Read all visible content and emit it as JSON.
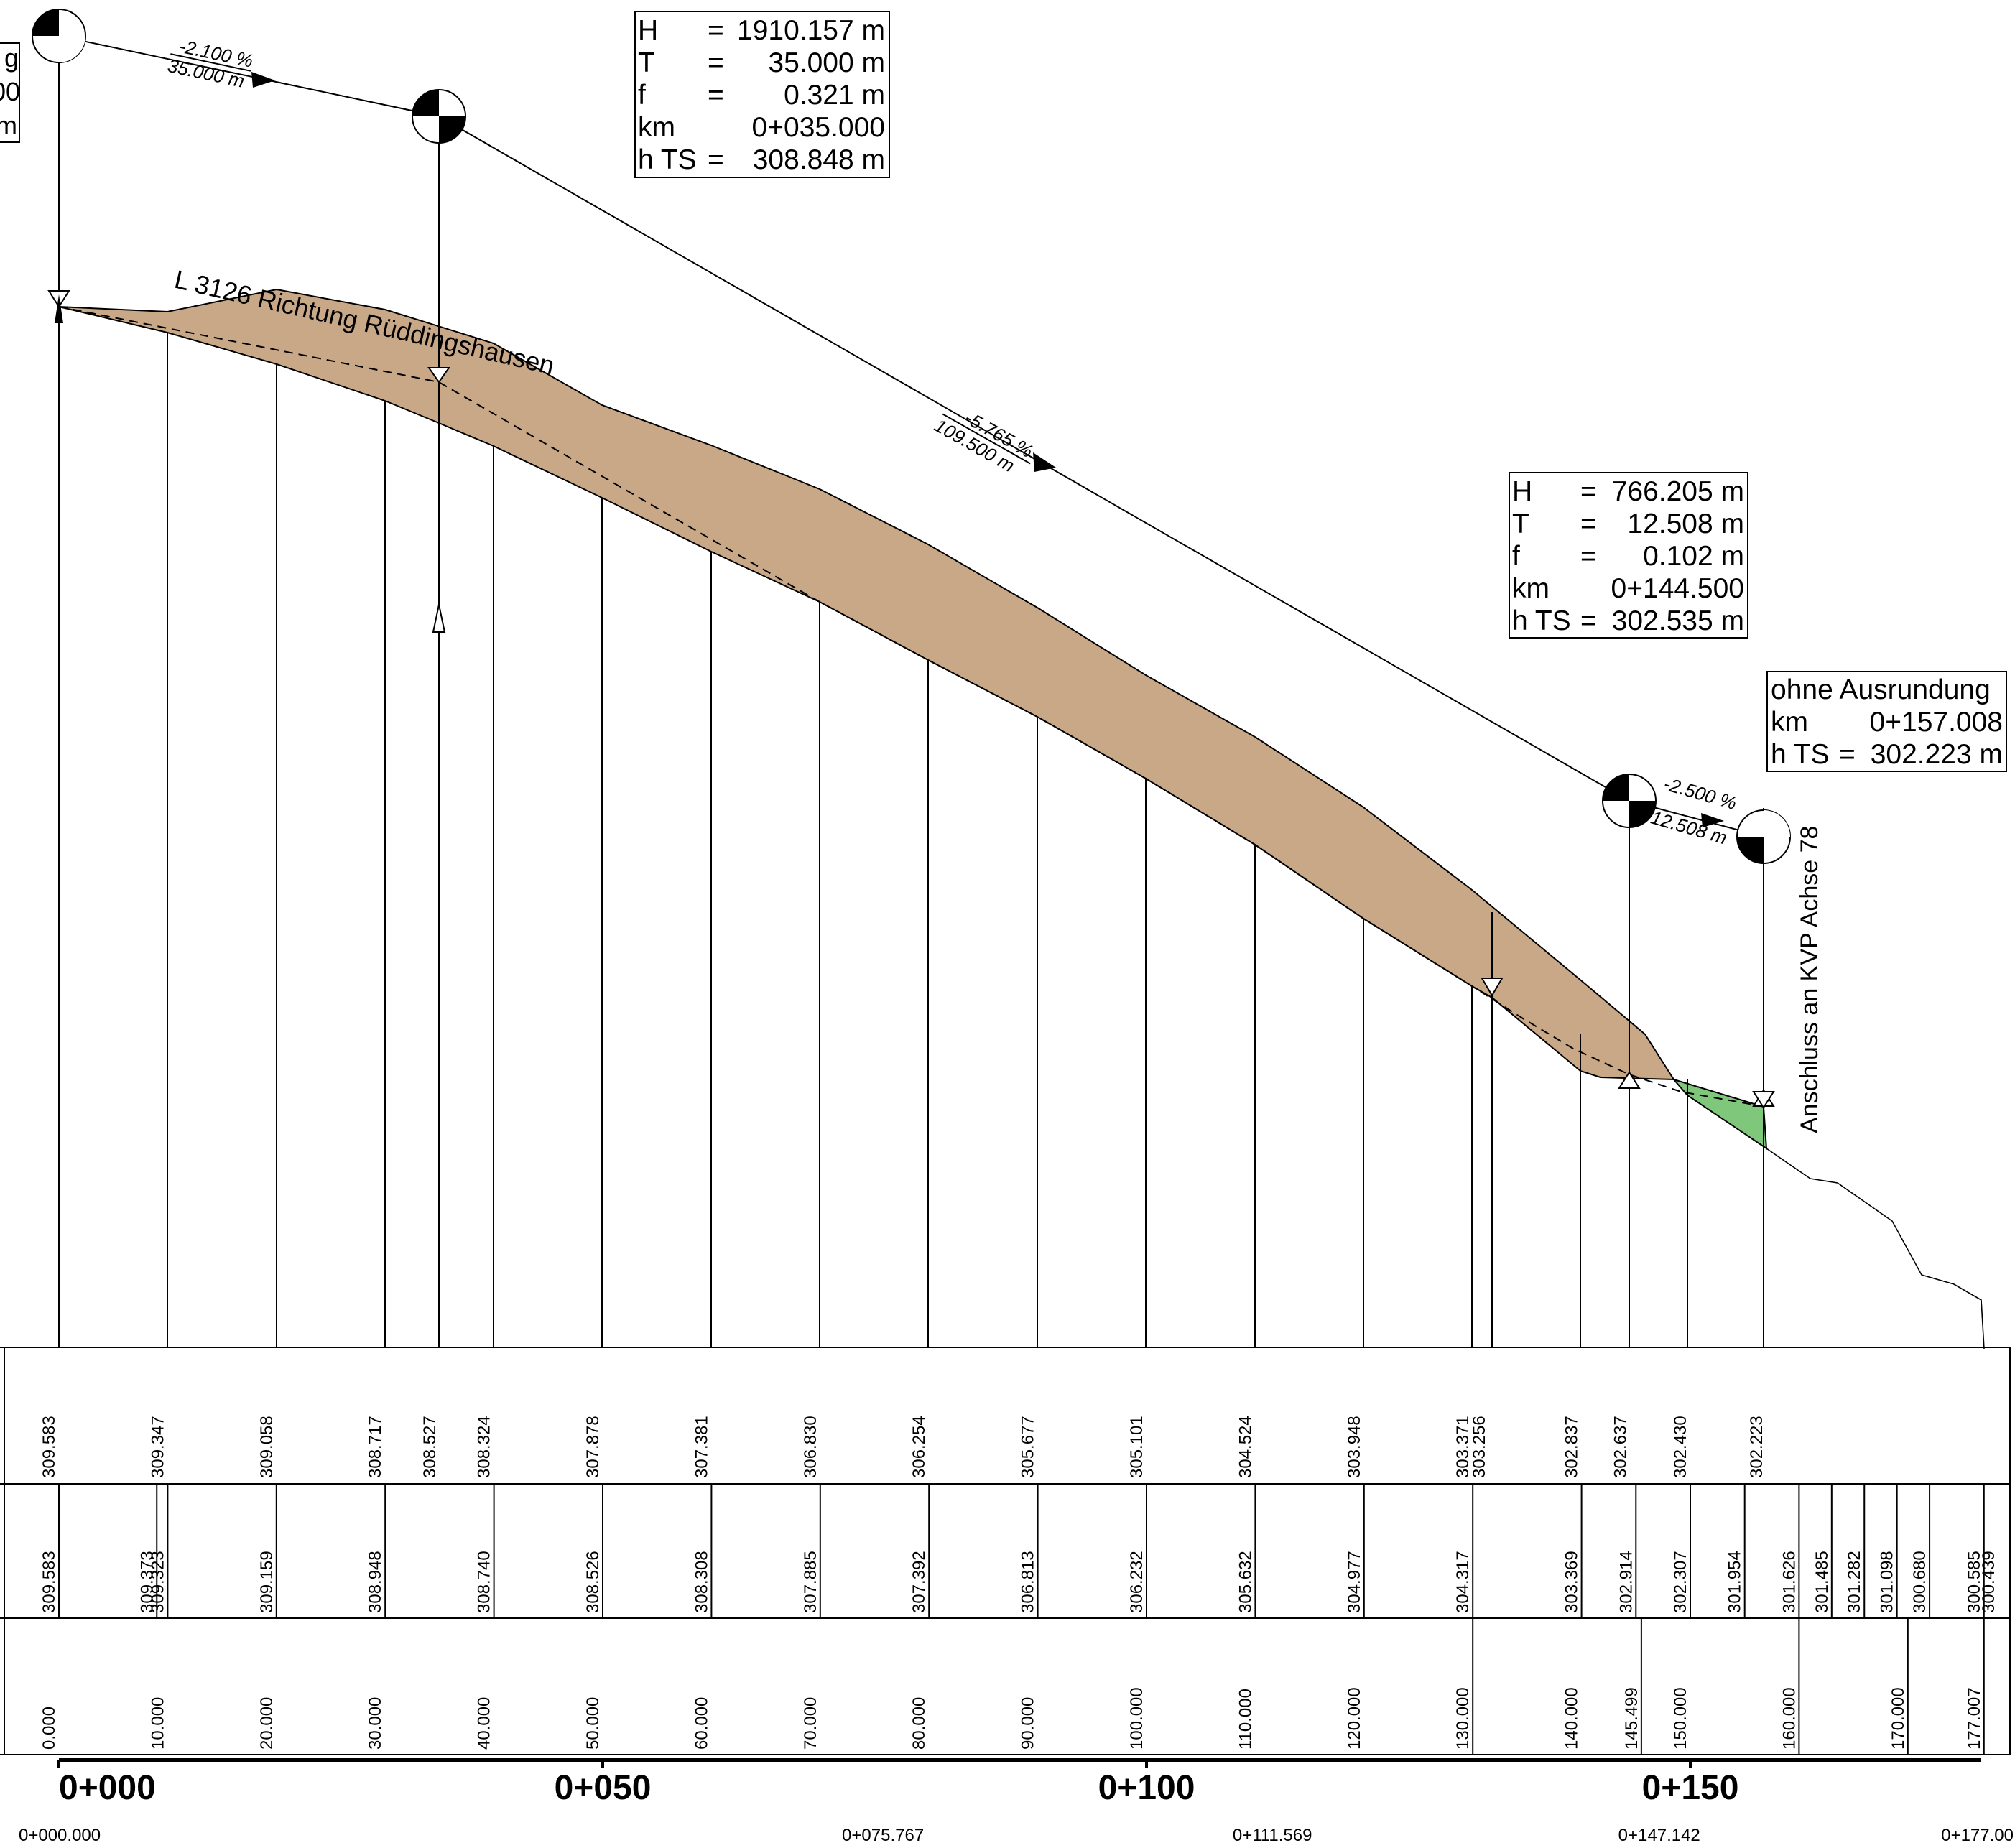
{
  "road_label": "L 3126 Richtung Rüddingshausen",
  "connection_label": "Anschluss an KVP Achse 78",
  "grade_labels": {
    "g1_pct": "-2.100 %",
    "g1_len": "35.000 m",
    "g2_pct": "-5.765 %",
    "g2_len": "109.500 m",
    "g3_pct": "-2.500 %",
    "g3_len": "12.508 m"
  },
  "left_box_fragments": [
    "g",
    "00",
    "m"
  ],
  "curve_box_1": {
    "rows": [
      {
        "k": "H",
        "eq": "=",
        "v": "1910.157 m"
      },
      {
        "k": "T",
        "eq": "=",
        "v": "35.000 m"
      },
      {
        "k": "f",
        "eq": "=",
        "v": "0.321 m"
      },
      {
        "k": "km",
        "eq": "",
        "v": "0+035.000"
      },
      {
        "k": "h TS",
        "eq": "=",
        "v": "308.848 m"
      }
    ]
  },
  "curve_box_2": {
    "rows": [
      {
        "k": "H",
        "eq": "=",
        "v": "766.205 m"
      },
      {
        "k": "T",
        "eq": "=",
        "v": "12.508 m"
      },
      {
        "k": "f",
        "eq": "=",
        "v": "0.102 m"
      },
      {
        "k": "km",
        "eq": "",
        "v": "0+144.500"
      },
      {
        "k": "h TS",
        "eq": "=",
        "v": "302.535 m"
      }
    ]
  },
  "curve_box_3": {
    "title": "ohne Ausrundung",
    "rows": [
      {
        "k": "km",
        "eq": "",
        "v": "0+157.008"
      },
      {
        "k": "h TS",
        "eq": "=",
        "v": "302.223 m"
      }
    ]
  },
  "chart_data": {
    "type": "line",
    "stations": [
      0,
      10,
      20,
      30,
      35,
      40,
      50,
      60,
      70,
      80,
      90,
      100,
      110,
      120,
      130,
      131.5,
      140,
      144.5,
      147,
      150,
      157
    ],
    "design_elevation": [
      "309.583",
      "309.347",
      "309.058",
      "308.717",
      "308.527",
      "308.324",
      "307.878",
      "307.381",
      "306.830",
      "306.254",
      "305.677",
      "305.101",
      "304.524",
      "303.948",
      "303.371",
      "303.256",
      "302.837",
      "302.637",
      "",
      "302.430",
      "302.223"
    ],
    "ground_stations": [
      0,
      9,
      10,
      20,
      30,
      40,
      50,
      60,
      70,
      80,
      90,
      100,
      110,
      120,
      130,
      140,
      145,
      150,
      155,
      160,
      163,
      166,
      169,
      172,
      177
    ],
    "ground_elevation": [
      "309.583",
      "309.373",
      "309.323",
      "309.159",
      "308.948",
      "308.740",
      "308.526",
      "308.308",
      "307.885",
      "307.392",
      "306.813",
      "306.232",
      "305.632",
      "304.977",
      "304.317",
      "303.369",
      "302.914",
      "302.307",
      "301.954",
      "301.626",
      "301.485",
      "301.282",
      "301.098",
      "300.680",
      "300.585"
    ],
    "ground_extra_last": "300.439",
    "station_labels": [
      "0.000",
      "10.000",
      "20.000",
      "30.000",
      "40.000",
      "50.000",
      "60.000",
      "70.000",
      "80.000",
      "90.000",
      "100.000",
      "110.000",
      "120.000",
      "130.000",
      "140.000",
      "145.499",
      "150.000",
      "160.000",
      "170.000",
      "177.007"
    ],
    "station_label_x": [
      0,
      10,
      20,
      30,
      40,
      50,
      60,
      70,
      80,
      90,
      100,
      110,
      120,
      130,
      140,
      145.5,
      150,
      160,
      170,
      177
    ],
    "axis_major_labels": [
      "0+000",
      "0+050",
      "0+100",
      "0+150"
    ],
    "axis_major_x": [
      0,
      50,
      100,
      150
    ],
    "axis_minor_labels": [
      "0+000.000",
      "0+075.767",
      "0+111.569",
      "0+147.142",
      "0+177.00"
    ],
    "axis_minor_x": [
      0,
      75.767,
      111.569,
      147.142,
      177
    ]
  }
}
